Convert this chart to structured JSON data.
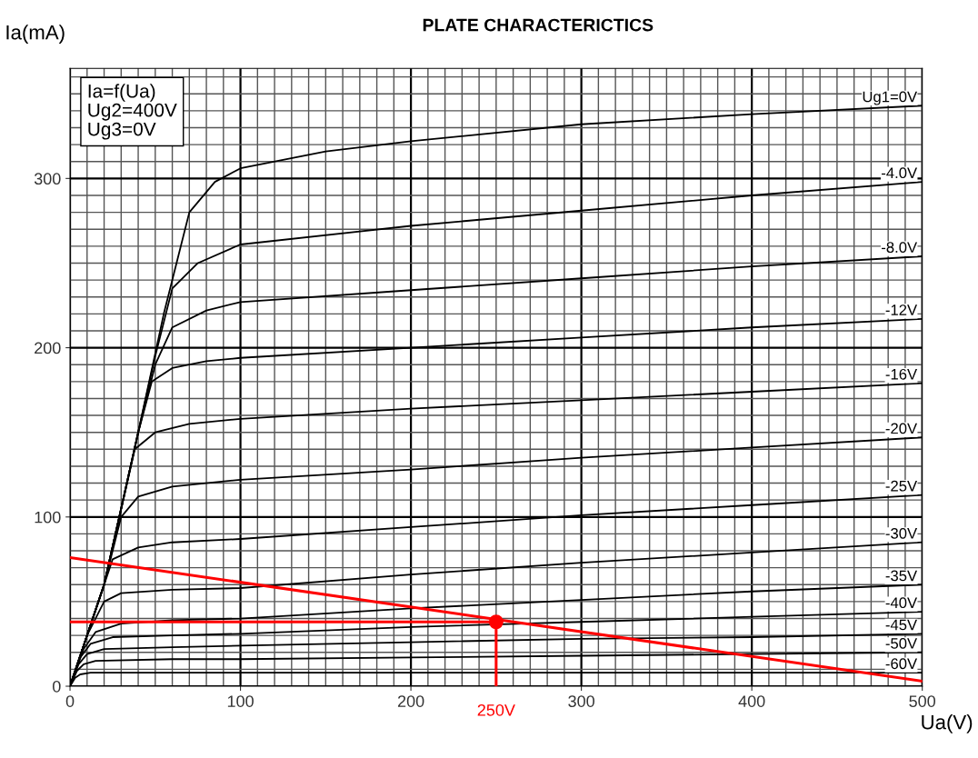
{
  "chart_data": {
    "type": "line",
    "title": "PLATE CHARACTERICTICS",
    "xlabel": "Ua(V)",
    "ylabel": "Ia(mA)",
    "annotations": [
      "Ia=f(Ua)\nUg2=400V\nUg3=0V",
      {
        "text": "250V",
        "x": 250,
        "y": 0
      }
    ],
    "xlim": [
      0,
      500
    ],
    "ylim": [
      0,
      365
    ],
    "xticks": [
      0,
      100,
      200,
      300,
      400,
      500
    ],
    "yticks": [
      0,
      100,
      200,
      300
    ],
    "grid": true,
    "legend": false,
    "marker": "none",
    "line_style": "solid",
    "series": [
      {
        "name": "Ug1=0V",
        "color": "#000000",
        "x": [
          0,
          20,
          40,
          55,
          70,
          85,
          100,
          150,
          200,
          300,
          400,
          500
        ],
        "values": [
          0,
          60,
          150,
          220,
          280,
          298,
          306,
          316,
          322,
          332,
          338,
          343
        ]
      },
      {
        "name": "-4.0V",
        "color": "#000000",
        "x": [
          0,
          20,
          40,
          50,
          60,
          75,
          100,
          200,
          300,
          400,
          500
        ],
        "values": [
          0,
          60,
          150,
          195,
          235,
          250,
          261,
          272,
          281,
          290,
          298
        ]
      },
      {
        "name": "-8.0V",
        "color": "#000000",
        "x": [
          0,
          20,
          40,
          50,
          60,
          80,
          100,
          200,
          300,
          400,
          500
        ],
        "values": [
          0,
          60,
          150,
          190,
          212,
          222,
          227,
          234,
          241,
          248,
          254
        ]
      },
      {
        "name": "-12V",
        "color": "#000000",
        "x": [
          0,
          20,
          40,
          48,
          60,
          80,
          100,
          200,
          300,
          400,
          500
        ],
        "values": [
          0,
          60,
          150,
          180,
          188,
          192,
          194,
          200,
          206,
          212,
          217
        ]
      },
      {
        "name": "-16V",
        "color": "#000000",
        "x": [
          0,
          20,
          38,
          50,
          70,
          100,
          200,
          300,
          400,
          500
        ],
        "values": [
          0,
          60,
          140,
          150,
          155,
          158,
          164,
          169,
          174,
          179
        ]
      },
      {
        "name": "-20V",
        "color": "#000000",
        "x": [
          0,
          20,
          30,
          40,
          60,
          100,
          200,
          300,
          400,
          500
        ],
        "values": [
          0,
          60,
          100,
          112,
          118,
          122,
          128,
          135,
          141,
          147
        ]
      },
      {
        "name": "-25V",
        "color": "#000000",
        "x": [
          0,
          15,
          25,
          40,
          60,
          100,
          200,
          300,
          400,
          500
        ],
        "values": [
          0,
          45,
          75,
          82,
          85,
          87,
          94,
          101,
          107,
          113
        ]
      },
      {
        "name": "-30V",
        "color": "#000000",
        "x": [
          0,
          10,
          20,
          30,
          60,
          100,
          200,
          300,
          400,
          500
        ],
        "values": [
          0,
          30,
          50,
          55,
          57,
          58,
          66,
          73,
          79,
          85
        ]
      },
      {
        "name": "-35V",
        "color": "#000000",
        "x": [
          0,
          8,
          15,
          30,
          60,
          100,
          200,
          300,
          400,
          500
        ],
        "values": [
          0,
          22,
          32,
          37,
          39,
          40,
          46,
          51,
          56,
          60
        ]
      },
      {
        "name": "-40V",
        "color": "#000000",
        "x": [
          0,
          6,
          12,
          25,
          60,
          100,
          200,
          300,
          400,
          500
        ],
        "values": [
          0,
          17,
          25,
          29,
          30,
          31,
          35,
          38,
          41,
          44
        ]
      },
      {
        "name": "-45V",
        "color": "#000000",
        "x": [
          0,
          5,
          10,
          20,
          60,
          100,
          200,
          300,
          400,
          500
        ],
        "values": [
          0,
          13,
          19,
          22,
          23,
          24,
          26,
          28,
          29,
          31
        ]
      },
      {
        "name": "-50V",
        "color": "#000000",
        "x": [
          0,
          4,
          8,
          15,
          60,
          100,
          200,
          300,
          400,
          500
        ],
        "values": [
          0,
          9,
          13,
          15,
          16,
          16,
          17,
          18,
          19,
          20
        ]
      },
      {
        "name": "-60V",
        "color": "#000000",
        "x": [
          0,
          3,
          6,
          12,
          60,
          100,
          200,
          300,
          400,
          500
        ],
        "values": [
          0,
          5,
          7,
          8,
          8,
          8,
          8,
          8,
          8,
          8
        ]
      },
      {
        "color": "#ff0000",
        "x": [
          0,
          500
        ],
        "values": [
          76,
          3
        ]
      },
      {
        "color": "#ff0000",
        "x": [
          0,
          250
        ],
        "values": [
          38,
          38
        ]
      },
      {
        "color": "#ff0000",
        "x": [
          250,
          250
        ],
        "values": [
          38,
          0
        ]
      },
      {
        "type": "scatter",
        "marker": "circle",
        "color": "#ff0000",
        "x": [
          250
        ],
        "values": [
          38
        ]
      }
    ]
  }
}
